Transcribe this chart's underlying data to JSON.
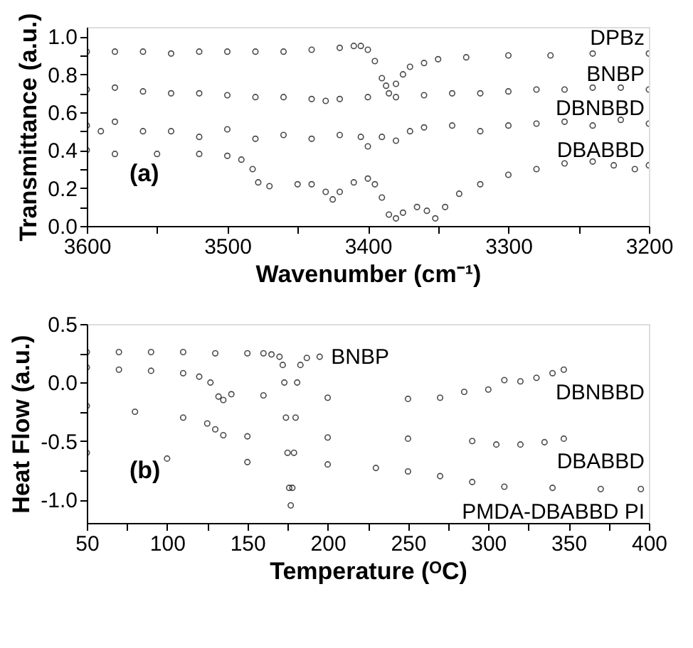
{
  "chart_data": [
    {
      "type": "scatter",
      "xlabel": "Wavenumber (cm⁻¹)",
      "ylabel": "Transmittance (a.u.)",
      "marker": "circle",
      "grid": false,
      "legend": false,
      "annotations": [
        "(a)"
      ],
      "xlim": [
        3600,
        3200
      ],
      "ylim": [
        0,
        1.05
      ],
      "xticks": [
        3600,
        {
          "value": 3550,
          "label": null
        },
        3500,
        {
          "value": 3450,
          "label": null
        },
        3400,
        {
          "value": 3350,
          "label": null
        },
        3300,
        {
          "value": 3250,
          "label": null
        },
        3200
      ],
      "yticks": [
        {
          "value": 0,
          "label": "0.0"
        },
        {
          "value": 0.1,
          "label": null
        },
        0.2,
        {
          "value": 0.3,
          "label": null
        },
        0.4,
        {
          "value": 0.5,
          "label": null
        },
        0.6,
        {
          "value": 0.7,
          "label": null
        },
        0.8,
        {
          "value": 0.9,
          "label": null
        },
        {
          "value": 1,
          "label": "1.0"
        }
      ],
      "series": [
        {
          "name": "DPBz",
          "color": "#000000",
          "x": [
            3600,
            3580,
            3560,
            3540,
            3520,
            3500,
            3480,
            3460,
            3440,
            3420,
            3410,
            3405,
            3400,
            3395,
            3390,
            3387,
            3385,
            3380,
            3375,
            3370,
            3360,
            3350,
            3330,
            3300,
            3270,
            3240,
            3200
          ],
          "values": [
            0.92,
            0.92,
            0.92,
            0.91,
            0.92,
            0.92,
            0.92,
            0.92,
            0.93,
            0.94,
            0.95,
            0.95,
            0.93,
            0.87,
            0.78,
            0.74,
            0.7,
            0.75,
            0.8,
            0.84,
            0.86,
            0.88,
            0.89,
            0.9,
            0.9,
            0.91,
            0.91
          ]
        },
        {
          "name": "BNBP",
          "color": "#000000",
          "x": [
            3600,
            3580,
            3560,
            3540,
            3520,
            3500,
            3480,
            3460,
            3440,
            3430,
            3420,
            3400,
            3380,
            3360,
            3340,
            3320,
            3300,
            3280,
            3260,
            3240,
            3220,
            3200
          ],
          "values": [
            0.72,
            0.73,
            0.71,
            0.7,
            0.7,
            0.69,
            0.68,
            0.68,
            0.67,
            0.66,
            0.67,
            0.68,
            0.68,
            0.69,
            0.7,
            0.7,
            0.71,
            0.72,
            0.72,
            0.73,
            0.73,
            0.72
          ]
        },
        {
          "name": "DBNBBD",
          "color": "#000000",
          "x": [
            3600,
            3590,
            3580,
            3560,
            3540,
            3520,
            3500,
            3480,
            3460,
            3440,
            3420,
            3405,
            3400,
            3390,
            3380,
            3370,
            3360,
            3340,
            3320,
            3300,
            3280,
            3260,
            3240,
            3220,
            3200
          ],
          "values": [
            0.53,
            0.5,
            0.55,
            0.5,
            0.5,
            0.47,
            0.51,
            0.46,
            0.48,
            0.46,
            0.48,
            0.47,
            0.42,
            0.47,
            0.45,
            0.5,
            0.52,
            0.53,
            0.5,
            0.53,
            0.54,
            0.55,
            0.53,
            0.56,
            0.54
          ]
        },
        {
          "name": "DBABBD",
          "color": "#000000",
          "x": [
            3600,
            3580,
            3550,
            3520,
            3500,
            3490,
            3482,
            3478,
            3470,
            3450,
            3440,
            3430,
            3425,
            3420,
            3410,
            3400,
            3395,
            3390,
            3385,
            3380,
            3375,
            3365,
            3358,
            3352,
            3345,
            3335,
            3320,
            3300,
            3280,
            3260,
            3240,
            3225,
            3210,
            3200
          ],
          "values": [
            0.4,
            0.38,
            0.38,
            0.38,
            0.37,
            0.35,
            0.3,
            0.23,
            0.21,
            0.22,
            0.22,
            0.18,
            0.14,
            0.18,
            0.23,
            0.25,
            0.22,
            0.15,
            0.06,
            0.04,
            0.07,
            0.1,
            0.08,
            0.04,
            0.1,
            0.17,
            0.22,
            0.27,
            0.3,
            0.33,
            0.34,
            0.32,
            0.3,
            0.32
          ]
        }
      ]
    },
    {
      "type": "scatter",
      "xlabel": "Temperature (ᴼC)",
      "ylabel": "Heat Flow (a.u.)",
      "marker": "circle",
      "grid": false,
      "legend": false,
      "annotations": [
        "(b)"
      ],
      "xlim": [
        50,
        400
      ],
      "ylim": [
        -1.2,
        0.5
      ],
      "xticks": [
        50,
        {
          "value": 75,
          "label": null
        },
        100,
        {
          "value": 125,
          "label": null
        },
        150,
        {
          "value": 175,
          "label": null
        },
        200,
        {
          "value": 225,
          "label": null
        },
        250,
        {
          "value": 275,
          "label": null
        },
        300,
        {
          "value": 325,
          "label": null
        },
        350,
        {
          "value": 375,
          "label": null
        },
        400
      ],
      "yticks": [
        {
          "value": -1,
          "label": "-1.0"
        },
        {
          "value": -0.75,
          "label": null
        },
        -0.5,
        {
          "value": -0.25,
          "label": null
        },
        {
          "value": 0,
          "label": "0.0"
        },
        {
          "value": 0.25,
          "label": null
        },
        0.5
      ],
      "series": [
        {
          "name": "BNBP",
          "color": "#000000",
          "x": [
            50,
            70,
            90,
            110,
            130,
            150,
            160,
            165,
            170,
            172,
            173,
            174,
            175,
            176,
            177,
            178,
            179,
            180,
            181,
            183,
            187,
            195
          ],
          "values": [
            0.26,
            0.26,
            0.26,
            0.26,
            0.25,
            0.25,
            0.25,
            0.24,
            0.22,
            0.15,
            0.0,
            -0.3,
            -0.6,
            -0.9,
            -1.05,
            -0.9,
            -0.6,
            -0.3,
            0.0,
            0.15,
            0.21,
            0.22
          ]
        },
        {
          "name": "DBNBBD",
          "color": "#000000",
          "x": [
            50,
            70,
            90,
            110,
            120,
            127,
            132,
            135,
            140,
            160,
            200,
            250,
            270,
            285,
            300,
            310,
            320,
            330,
            340,
            347
          ],
          "values": [
            0.13,
            0.11,
            0.1,
            0.08,
            0.05,
            0.0,
            -0.12,
            -0.15,
            -0.1,
            -0.11,
            -0.13,
            -0.14,
            -0.13,
            -0.08,
            -0.06,
            0.02,
            0.01,
            0.04,
            0.08,
            0.11
          ]
        },
        {
          "name": "DBABBD",
          "color": "#000000",
          "x": [
            50,
            80,
            110,
            125,
            130,
            135,
            150,
            200,
            250,
            290,
            305,
            320,
            335,
            347
          ],
          "values": [
            -0.2,
            -0.25,
            -0.3,
            -0.35,
            -0.4,
            -0.45,
            -0.46,
            -0.47,
            -0.48,
            -0.5,
            -0.53,
            -0.53,
            -0.51,
            -0.48
          ]
        },
        {
          "name": "PMDA-DBABBD PI",
          "color": "#000000",
          "x": [
            50,
            100,
            150,
            200,
            230,
            250,
            270,
            290,
            310,
            340,
            370,
            395
          ],
          "values": [
            -0.6,
            -0.65,
            -0.68,
            -0.7,
            -0.73,
            -0.76,
            -0.8,
            -0.85,
            -0.89,
            -0.9,
            -0.91,
            -0.91
          ]
        }
      ]
    }
  ]
}
